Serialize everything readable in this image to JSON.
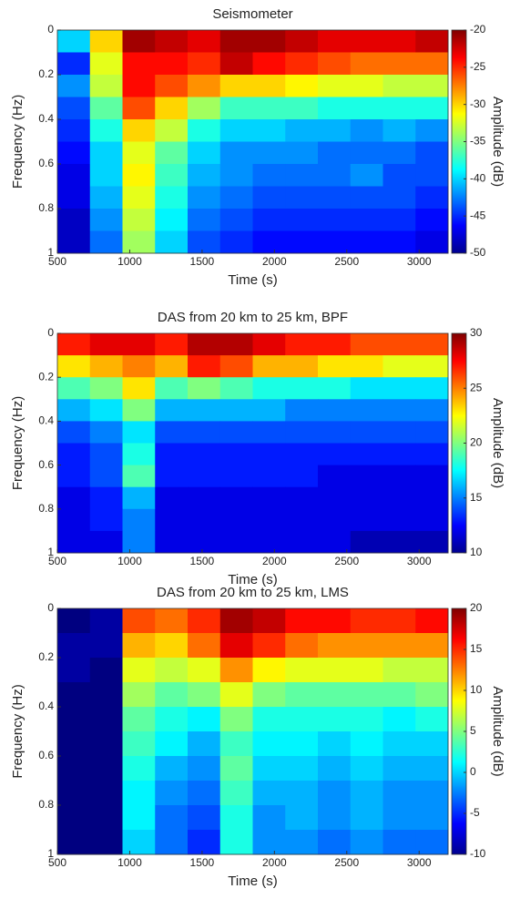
{
  "chart_data": [
    {
      "type": "heatmap",
      "title": "Seismometer",
      "xlabel": "Time (s)",
      "ylabel": "Frequency (Hz)",
      "colorbar_label": "Amplitude (dB)",
      "colormap": "jet",
      "y_reversed": true,
      "xlim": [
        500,
        3200
      ],
      "xticks": [
        500,
        1000,
        1500,
        2000,
        2500,
        3000
      ],
      "ylim": [
        0,
        1
      ],
      "yticks": [
        0,
        0.2,
        0.4,
        0.6,
        0.8,
        1
      ],
      "clim": [
        -50,
        -20
      ],
      "cticks": [
        -50,
        -45,
        -40,
        -35,
        -30,
        -25,
        -20
      ],
      "xbins": [
        500,
        725,
        950,
        1175,
        1400,
        1625,
        1850,
        2075,
        2300,
        2525,
        2750,
        2975,
        3200
      ],
      "ybins": [
        0,
        0.1,
        0.2,
        0.3,
        0.4,
        0.5,
        0.6,
        0.7,
        0.8,
        0.9,
        1
      ],
      "z": [
        [
          -40,
          -30,
          -21,
          -22,
          -23,
          -21,
          -21,
          -22,
          -23,
          -23,
          -23,
          -22
        ],
        [
          -45,
          -32,
          -24,
          -24,
          -25,
          -22,
          -24,
          -25,
          -26,
          -27,
          -27,
          -27
        ],
        [
          -42,
          -33,
          -24,
          -26,
          -28,
          -30,
          -30,
          -31,
          -32,
          -32,
          -33,
          -33
        ],
        [
          -44,
          -36,
          -26,
          -30,
          -34,
          -37,
          -37,
          -37,
          -38,
          -38,
          -38,
          -38
        ],
        [
          -45,
          -38,
          -30,
          -33,
          -38,
          -40,
          -40,
          -41,
          -41,
          -42,
          -41,
          -42
        ],
        [
          -46,
          -40,
          -32,
          -36,
          -40,
          -42,
          -42,
          -42,
          -43,
          -43,
          -43,
          -44
        ],
        [
          -47,
          -40,
          -31,
          -37,
          -41,
          -42,
          -43,
          -43,
          -43,
          -42,
          -44,
          -44
        ],
        [
          -47,
          -41,
          -32,
          -38,
          -42,
          -43,
          -44,
          -44,
          -44,
          -44,
          -44,
          -45
        ],
        [
          -48,
          -42,
          -33,
          -39,
          -43,
          -44,
          -45,
          -45,
          -45,
          -45,
          -45,
          -46
        ],
        [
          -48,
          -43,
          -34,
          -40,
          -44,
          -45,
          -46,
          -46,
          -46,
          -46,
          -46,
          -47
        ]
      ]
    },
    {
      "type": "heatmap",
      "title": "DAS from 20 km to 25 km, BPF",
      "xlabel": "Time (s)",
      "ylabel": "Frequency (Hz)",
      "colorbar_label": "Amplitude (dB)",
      "colormap": "jet",
      "y_reversed": true,
      "xlim": [
        500,
        3200
      ],
      "xticks": [
        500,
        1000,
        1500,
        2000,
        2500,
        3000
      ],
      "ylim": [
        0,
        1
      ],
      "yticks": [
        0,
        0.2,
        0.4,
        0.6,
        0.8,
        1
      ],
      "clim": [
        10,
        30
      ],
      "cticks": [
        10,
        15,
        20,
        25,
        30
      ],
      "xbins": [
        500,
        725,
        950,
        1175,
        1400,
        1625,
        1850,
        2075,
        2300,
        2525,
        2750,
        2975,
        3200
      ],
      "ybins": [
        0,
        0.1,
        0.2,
        0.3,
        0.4,
        0.5,
        0.6,
        0.7,
        0.8,
        0.9,
        1
      ],
      "z": [
        [
          27,
          28,
          28,
          27,
          29,
          29,
          28,
          27,
          27,
          26,
          26,
          26
        ],
        [
          23,
          24,
          25,
          24,
          27,
          26,
          24,
          24,
          23,
          23,
          22,
          22
        ],
        [
          19,
          20,
          23,
          19,
          20,
          19,
          18,
          18,
          18,
          17,
          17,
          17
        ],
        [
          16,
          17,
          20,
          16,
          16,
          16,
          16,
          15,
          15,
          15,
          15,
          15
        ],
        [
          14,
          15,
          17,
          14,
          14,
          14,
          14,
          14,
          14,
          14,
          14,
          14
        ],
        [
          13,
          14,
          18,
          13,
          13,
          13,
          13,
          13,
          13,
          13,
          13,
          13
        ],
        [
          13,
          14,
          19,
          13,
          13,
          13,
          13,
          13,
          12,
          12,
          12,
          12
        ],
        [
          12,
          13,
          16,
          12,
          12,
          12,
          12,
          12,
          12,
          12,
          12,
          12
        ],
        [
          12,
          13,
          15,
          12,
          12,
          12,
          12,
          12,
          12,
          12,
          12,
          12
        ],
        [
          12,
          12,
          15,
          12,
          12,
          12,
          12,
          12,
          12,
          11,
          11,
          11
        ]
      ]
    },
    {
      "type": "heatmap",
      "title": "DAS from 20 km to 25 km, LMS",
      "xlabel": "Time (s)",
      "ylabel": "Frequency (Hz)",
      "colorbar_label": "Amplitude (dB)",
      "colormap": "jet",
      "y_reversed": true,
      "xlim": [
        500,
        3200
      ],
      "xticks": [
        500,
        1000,
        1500,
        2000,
        2500,
        3000
      ],
      "ylim": [
        0,
        1
      ],
      "yticks": [
        0,
        0.2,
        0.4,
        0.6,
        0.8,
        1
      ],
      "clim": [
        -10,
        20
      ],
      "cticks": [
        -10,
        -5,
        0,
        5,
        10,
        15,
        20
      ],
      "xbins": [
        500,
        725,
        950,
        1175,
        1400,
        1625,
        1850,
        2075,
        2300,
        2525,
        2750,
        2975,
        3200
      ],
      "ybins": [
        0,
        0.1,
        0.2,
        0.3,
        0.4,
        0.5,
        0.6,
        0.7,
        0.8,
        0.9,
        1
      ],
      "z": [
        [
          -10,
          -9,
          14,
          13,
          15,
          19,
          18,
          16,
          16,
          15,
          15,
          16
        ],
        [
          -9,
          -9,
          11,
          10,
          13,
          17,
          15,
          13,
          12,
          12,
          12,
          12
        ],
        [
          -9,
          -10,
          8,
          7,
          8,
          12,
          9,
          8,
          8,
          8,
          7,
          7
        ],
        [
          -10,
          -10,
          6,
          4,
          5,
          8,
          5,
          4,
          4,
          4,
          4,
          5
        ],
        [
          -10,
          -10,
          4,
          2,
          1,
          5,
          2,
          2,
          2,
          2,
          1,
          2
        ],
        [
          -10,
          -10,
          3,
          1,
          -1,
          3,
          1,
          1,
          0,
          1,
          0,
          0
        ],
        [
          -10,
          -10,
          2,
          -1,
          -2,
          4,
          0,
          0,
          -1,
          0,
          -1,
          -1
        ],
        [
          -10,
          -10,
          1,
          -2,
          -3,
          3,
          -1,
          -1,
          -2,
          -1,
          -2,
          -2
        ],
        [
          -10,
          -10,
          1,
          -3,
          -4,
          2,
          -2,
          -1,
          -2,
          -1,
          -2,
          -2
        ],
        [
          -10,
          -10,
          0,
          -3,
          -5,
          2,
          -2,
          -2,
          -3,
          -2,
          -3,
          -3
        ]
      ]
    }
  ]
}
